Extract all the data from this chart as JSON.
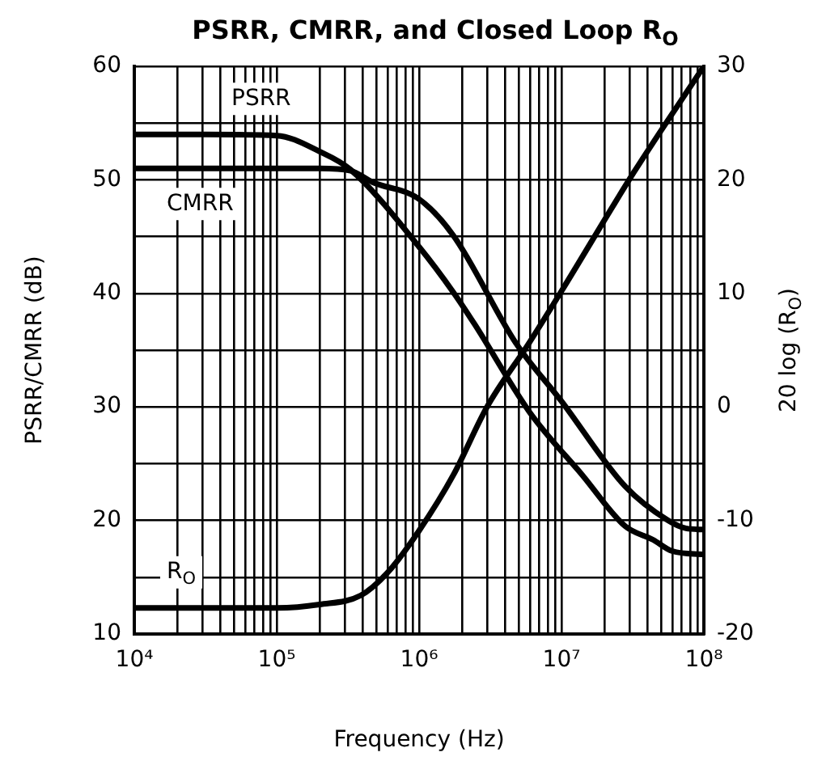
{
  "chart_data": {
    "type": "line",
    "title": "PSRR, CMRR, and Closed Loop R$_{O}$",
    "xlabel": "Frequency (Hz)",
    "ylabel": "PSRR/CMRR (dB)",
    "y2label": "20 log (R$_{O}$)",
    "log": "x",
    "grid": true,
    "legend": false,
    "marker": "none",
    "line_style": "solid",
    "xlim": [
      10000,
      100000000
    ],
    "xticks": [
      {
        "value": 10000,
        "label": "10⁴"
      },
      {
        "value": 20000,
        "label": null
      },
      {
        "value": 30000,
        "label": null
      },
      {
        "value": 40000,
        "label": null
      },
      {
        "value": 50000,
        "label": null
      },
      {
        "value": 60000,
        "label": null
      },
      {
        "value": 70000,
        "label": null
      },
      {
        "value": 80000,
        "label": null
      },
      {
        "value": 90000,
        "label": null
      },
      {
        "value": 100000,
        "label": "10⁵"
      },
      {
        "value": 200000,
        "label": null
      },
      {
        "value": 300000,
        "label": null
      },
      {
        "value": 400000,
        "label": null
      },
      {
        "value": 500000,
        "label": null
      },
      {
        "value": 600000,
        "label": null
      },
      {
        "value": 700000,
        "label": null
      },
      {
        "value": 800000,
        "label": null
      },
      {
        "value": 900000,
        "label": null
      },
      {
        "value": 1000000,
        "label": "10⁶"
      },
      {
        "value": 2000000,
        "label": null
      },
      {
        "value": 3000000,
        "label": null
      },
      {
        "value": 4000000,
        "label": null
      },
      {
        "value": 5000000,
        "label": null
      },
      {
        "value": 6000000,
        "label": null
      },
      {
        "value": 7000000,
        "label": null
      },
      {
        "value": 8000000,
        "label": null
      },
      {
        "value": 9000000,
        "label": null
      },
      {
        "value": 10000000,
        "label": "10⁷"
      },
      {
        "value": 20000000,
        "label": null
      },
      {
        "value": 30000000,
        "label": null
      },
      {
        "value": 40000000,
        "label": null
      },
      {
        "value": 50000000,
        "label": null
      },
      {
        "value": 60000000,
        "label": null
      },
      {
        "value": 70000000,
        "label": null
      },
      {
        "value": 80000000,
        "label": null
      },
      {
        "value": 90000000,
        "label": null
      },
      {
        "value": 100000000,
        "label": "10⁸"
      }
    ],
    "ylim": [
      10,
      60
    ],
    "yticks": [
      10,
      {
        "value": 15,
        "label": null
      },
      20,
      {
        "value": 25,
        "label": null
      },
      30,
      {
        "value": 35,
        "label": null
      },
      40,
      {
        "value": 45,
        "label": null
      },
      50,
      {
        "value": 55,
        "label": null
      },
      60
    ],
    "y2lim": [
      -20,
      30
    ],
    "y2ticks": [
      -20,
      -10,
      0,
      10,
      20,
      30
    ],
    "series": [
      {
        "name": "PSRR",
        "color": "#000000",
        "x": [
          10000,
          30000,
          100000,
          200000,
          330000,
          1000000,
          1740000,
          2450000,
          6000000,
          14000000,
          28000000,
          44000000,
          60000000,
          100000000
        ],
        "values": [
          54,
          54,
          53.9,
          52.5,
          50.9,
          44.1,
          40.1,
          37.3,
          29.5,
          24,
          19.5,
          18.3,
          17.3,
          17
        ]
      },
      {
        "name": "CMRR",
        "color": "#000000",
        "x": [
          10000,
          100000,
          200000,
          330000,
          470000,
          1000000,
          1740000,
          4800000,
          10000000,
          28000000,
          56000000,
          75000000,
          100000000
        ],
        "values": [
          51,
          51,
          51,
          50.8,
          49.8,
          48.3,
          45.1,
          35.6,
          30.5,
          23,
          20,
          19.3,
          19.2
        ]
      },
      {
        "name": "R$_{O}$",
        "color": "#000000",
        "axis": "y2",
        "x": [
          10000,
          100000,
          200000,
          390000,
          600000,
          1000000,
          1740000,
          3000000,
          5900000,
          10000000,
          32000000,
          100000000
        ],
        "values": [
          -17.7,
          -17.7,
          -17.4,
          -16.6,
          -14.6,
          -10.9,
          -6,
          0,
          5.6,
          10.2,
          20.6,
          30
        ]
      }
    ]
  }
}
